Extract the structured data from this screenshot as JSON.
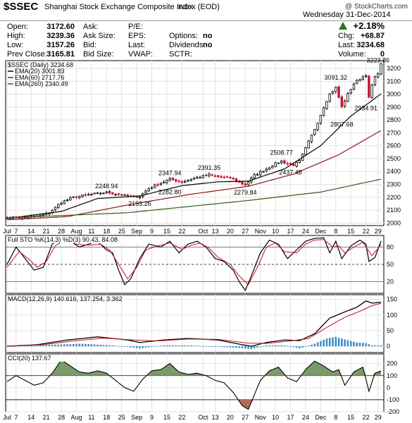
{
  "header": {
    "symbol": "$SSEC",
    "name": "Shanghai Stock Exchange Composite Index (EOD)",
    "exchange": "INDX",
    "watermark": "@ StockCharts.com",
    "date": "Wednesday  31-Dec-2014",
    "change_pct": "+2.18%",
    "up_color": "#1e7a1e",
    "fields": {
      "open_label": "Open:",
      "open": "3172.60",
      "high_label": "High:",
      "high": "3239.36",
      "low_label": "Low:",
      "low": "3157.26",
      "prev_label": "Prev Close:",
      "prev": "3165.81",
      "ask_label": "Ask:",
      "asksize_label": "Ask Size:",
      "bid_label": "Bid:",
      "bidsize_label": "Bid Size:",
      "pe_label": "P/E:",
      "eps_label": "EPS:",
      "last_label": "Last:",
      "vwap_label": "VWAP:",
      "options_label": "Options:",
      "options": "no",
      "dividends_label": "Dividends:",
      "dividends": "no",
      "sctr_label": "SCTR:",
      "chg_label": "Chg:",
      "chg": "+68.87",
      "last2_label": "Last:",
      "last2": "3234.68",
      "volume_label": "Volume:",
      "volume": "0"
    }
  },
  "chart_data": [
    {
      "type": "candlestick",
      "title": "$SSEC (Daily) 3234.68",
      "legend": [
        {
          "name": "EMA(20) 3001.83",
          "color": "#000000"
        },
        {
          "name": "EMA(60) 2717.76",
          "color": "#8b1a1a"
        },
        {
          "name": "EMA(260) 2340.49",
          "color": "#2e5e1e"
        }
      ],
      "ylim": [
        1980,
        3260
      ],
      "yticks": [
        2000,
        2100,
        2200,
        2300,
        2400,
        2500,
        2600,
        2700,
        2800,
        2900,
        3000,
        3100,
        3200
      ],
      "x_labels": [
        {
          "i": 0,
          "label": "Jul"
        },
        {
          "i": 3,
          "label": "7"
        },
        {
          "i": 8,
          "label": "14"
        },
        {
          "i": 13,
          "label": "21"
        },
        {
          "i": 18,
          "label": "28"
        },
        {
          "i": 23,
          "label": "Aug"
        },
        {
          "i": 28,
          "label": "11"
        },
        {
          "i": 33,
          "label": "18"
        },
        {
          "i": 38,
          "label": "25"
        },
        {
          "i": 43,
          "label": "Sep"
        },
        {
          "i": 48,
          "label": "9"
        },
        {
          "i": 53,
          "label": "15"
        },
        {
          "i": 58,
          "label": "22"
        },
        {
          "i": 65,
          "label": "Oct"
        },
        {
          "i": 69,
          "label": "13"
        },
        {
          "i": 74,
          "label": "20"
        },
        {
          "i": 79,
          "label": "27"
        },
        {
          "i": 84,
          "label": "Nov"
        },
        {
          "i": 89,
          "label": "10"
        },
        {
          "i": 94,
          "label": "17"
        },
        {
          "i": 99,
          "label": "24"
        },
        {
          "i": 104,
          "label": "Dec"
        },
        {
          "i": 109,
          "label": "8"
        },
        {
          "i": 114,
          "label": "15"
        },
        {
          "i": 119,
          "label": "22"
        },
        {
          "i": 123,
          "label": "29"
        }
      ],
      "annotations": [
        {
          "i": 33,
          "value": 2248.94,
          "label": "2248.94"
        },
        {
          "i": 44,
          "value": 2193.26,
          "label": "2193.26"
        },
        {
          "i": 54,
          "value": 2347.94,
          "label": "2347.94"
        },
        {
          "i": 54,
          "value": 2282.8,
          "label": "2282.80"
        },
        {
          "i": 67,
          "value": 2391.35,
          "label": "2391.35"
        },
        {
          "i": 79,
          "value": 2279.84,
          "label": "2279.84"
        },
        {
          "i": 91,
          "value": 2508.77,
          "label": "2508.77"
        },
        {
          "i": 94,
          "value": 2437.48,
          "label": "2437.48"
        },
        {
          "i": 109,
          "value": 3091.32,
          "label": "3091.32"
        },
        {
          "i": 111,
          "value": 2807.68,
          "label": "2807.68"
        },
        {
          "i": 119,
          "value": 2934.91,
          "label": "2934.91"
        },
        {
          "i": 123,
          "value": 3223.86,
          "label": "3223.86"
        }
      ],
      "anchors": [
        [
          0,
          2040
        ],
        [
          5,
          2045
        ],
        [
          10,
          2050
        ],
        [
          14,
          2080
        ],
        [
          18,
          2160
        ],
        [
          22,
          2200
        ],
        [
          26,
          2215
        ],
        [
          30,
          2230
        ],
        [
          33,
          2238
        ],
        [
          37,
          2222
        ],
        [
          41,
          2205
        ],
        [
          44,
          2205
        ],
        [
          47,
          2270
        ],
        [
          50,
          2300
        ],
        [
          54,
          2340
        ],
        [
          58,
          2318
        ],
        [
          61,
          2340
        ],
        [
          65,
          2363
        ],
        [
          67,
          2375
        ],
        [
          70,
          2358
        ],
        [
          74,
          2350
        ],
        [
          77,
          2315
        ],
        [
          79,
          2295
        ],
        [
          82,
          2370
        ],
        [
          86,
          2420
        ],
        [
          89,
          2460
        ],
        [
          91,
          2480
        ],
        [
          93,
          2460
        ],
        [
          95,
          2450
        ],
        [
          97,
          2480
        ],
        [
          99,
          2580
        ],
        [
          101,
          2680
        ],
        [
          103,
          2780
        ],
        [
          105,
          2900
        ],
        [
          107,
          3000
        ],
        [
          109,
          3050
        ],
        [
          111,
          2900
        ],
        [
          113,
          3000
        ],
        [
          115,
          3080
        ],
        [
          117,
          3120
        ],
        [
          119,
          3150
        ],
        [
          120,
          2970
        ],
        [
          121,
          3070
        ],
        [
          122,
          3130
        ],
        [
          123,
          3165
        ],
        [
          124,
          3234.68
        ]
      ],
      "ema_anchors": {
        "ema20": [
          [
            0,
            2035
          ],
          [
            18,
            2090
          ],
          [
            30,
            2190
          ],
          [
            44,
            2210
          ],
          [
            58,
            2290
          ],
          [
            70,
            2320
          ],
          [
            80,
            2325
          ],
          [
            92,
            2420
          ],
          [
            104,
            2600
          ],
          [
            114,
            2830
          ],
          [
            124,
            3001.83
          ]
        ],
        "ema60": [
          [
            0,
            2025
          ],
          [
            20,
            2050
          ],
          [
            40,
            2140
          ],
          [
            60,
            2220
          ],
          [
            80,
            2285
          ],
          [
            95,
            2380
          ],
          [
            110,
            2530
          ],
          [
            124,
            2717.76
          ]
        ],
        "ema260": [
          [
            0,
            2040
          ],
          [
            40,
            2080
          ],
          [
            80,
            2175
          ],
          [
            104,
            2240
          ],
          [
            124,
            2340.49
          ]
        ]
      }
    },
    {
      "type": "line",
      "title": "Full STO %K(14,3) %D(3) 90.43, 84.08",
      "ylim": [
        0,
        100
      ],
      "yticks": [
        20,
        50,
        80
      ],
      "k_anchors": [
        [
          0,
          50
        ],
        [
          3,
          80
        ],
        [
          6,
          60
        ],
        [
          9,
          40
        ],
        [
          12,
          45
        ],
        [
          15,
          85
        ],
        [
          18,
          95
        ],
        [
          21,
          90
        ],
        [
          24,
          80
        ],
        [
          27,
          85
        ],
        [
          30,
          90
        ],
        [
          33,
          75
        ],
        [
          35,
          70
        ],
        [
          37,
          40
        ],
        [
          39,
          15
        ],
        [
          41,
          25
        ],
        [
          44,
          60
        ],
        [
          47,
          85
        ],
        [
          51,
          80
        ],
        [
          54,
          90
        ],
        [
          57,
          70
        ],
        [
          60,
          85
        ],
        [
          63,
          90
        ],
        [
          66,
          80
        ],
        [
          69,
          60
        ],
        [
          72,
          55
        ],
        [
          75,
          40
        ],
        [
          77,
          20
        ],
        [
          79,
          5
        ],
        [
          81,
          30
        ],
        [
          84,
          70
        ],
        [
          87,
          92
        ],
        [
          90,
          85
        ],
        [
          93,
          60
        ],
        [
          96,
          75
        ],
        [
          99,
          90
        ],
        [
          102,
          95
        ],
        [
          105,
          96
        ],
        [
          107,
          70
        ],
        [
          109,
          90
        ],
        [
          111,
          60
        ],
        [
          114,
          82
        ],
        [
          117,
          92
        ],
        [
          119,
          85
        ],
        [
          120,
          55
        ],
        [
          122,
          62
        ],
        [
          124,
          90.43
        ]
      ],
      "d_anchors": [
        [
          0,
          45
        ],
        [
          4,
          72
        ],
        [
          7,
          60
        ],
        [
          10,
          45
        ],
        [
          13,
          55
        ],
        [
          16,
          82
        ],
        [
          19,
          92
        ],
        [
          23,
          85
        ],
        [
          27,
          83
        ],
        [
          31,
          85
        ],
        [
          34,
          75
        ],
        [
          37,
          50
        ],
        [
          40,
          25
        ],
        [
          43,
          45
        ],
        [
          46,
          75
        ],
        [
          50,
          82
        ],
        [
          54,
          87
        ],
        [
          58,
          76
        ],
        [
          61,
          83
        ],
        [
          64,
          87
        ],
        [
          67,
          78
        ],
        [
          70,
          62
        ],
        [
          74,
          50
        ],
        [
          77,
          30
        ],
        [
          80,
          15
        ],
        [
          83,
          45
        ],
        [
          86,
          80
        ],
        [
          89,
          87
        ],
        [
          92,
          72
        ],
        [
          96,
          70
        ],
        [
          99,
          85
        ],
        [
          102,
          92
        ],
        [
          105,
          93
        ],
        [
          108,
          80
        ],
        [
          110,
          82
        ],
        [
          112,
          70
        ],
        [
          115,
          80
        ],
        [
          118,
          88
        ],
        [
          121,
          65
        ],
        [
          124,
          84.08
        ]
      ]
    },
    {
      "type": "line",
      "title": "MACD(12,26,9) 140.616, 137.254, 3.362",
      "ylim": [
        -20,
        165
      ],
      "yticks": [
        0,
        50,
        100,
        150
      ],
      "macd_anchors": [
        [
          0,
          0
        ],
        [
          10,
          5
        ],
        [
          20,
          20
        ],
        [
          30,
          30
        ],
        [
          40,
          20
        ],
        [
          44,
          12
        ],
        [
          52,
          20
        ],
        [
          60,
          25
        ],
        [
          70,
          20
        ],
        [
          78,
          5
        ],
        [
          81,
          0
        ],
        [
          86,
          12
        ],
        [
          92,
          20
        ],
        [
          97,
          18
        ],
        [
          102,
          40
        ],
        [
          107,
          90
        ],
        [
          112,
          110
        ],
        [
          116,
          125
        ],
        [
          119,
          145
        ],
        [
          121,
          138
        ],
        [
          124,
          140.616
        ]
      ],
      "signal_anchors": [
        [
          0,
          0
        ],
        [
          12,
          5
        ],
        [
          22,
          17
        ],
        [
          32,
          26
        ],
        [
          42,
          20
        ],
        [
          50,
          17
        ],
        [
          60,
          23
        ],
        [
          70,
          22
        ],
        [
          80,
          10
        ],
        [
          86,
          9
        ],
        [
          94,
          17
        ],
        [
          100,
          25
        ],
        [
          106,
          60
        ],
        [
          112,
          93
        ],
        [
          117,
          112
        ],
        [
          121,
          130
        ],
        [
          124,
          137.254
        ]
      ],
      "hist_anchors": [
        [
          0,
          0
        ],
        [
          15,
          5
        ],
        [
          25,
          8
        ],
        [
          35,
          3
        ],
        [
          44,
          -7
        ],
        [
          52,
          3
        ],
        [
          60,
          3
        ],
        [
          70,
          -2
        ],
        [
          78,
          -6
        ],
        [
          81,
          -9
        ],
        [
          86,
          3
        ],
        [
          92,
          3
        ],
        [
          97,
          -7
        ],
        [
          102,
          8
        ],
        [
          106,
          25
        ],
        [
          109,
          30
        ],
        [
          112,
          22
        ],
        [
          116,
          12
        ],
        [
          119,
          10
        ],
        [
          121,
          3
        ],
        [
          124,
          3.362
        ]
      ]
    },
    {
      "type": "area",
      "title": "CCI(20) 137.67",
      "ylim": [
        -200,
        280
      ],
      "yticks": [
        -200,
        -100,
        0,
        100,
        200
      ],
      "cci_anchors": [
        [
          0,
          50
        ],
        [
          3,
          100
        ],
        [
          6,
          60
        ],
        [
          9,
          20
        ],
        [
          12,
          40
        ],
        [
          15,
          120
        ],
        [
          18,
          230
        ],
        [
          21,
          180
        ],
        [
          24,
          130
        ],
        [
          27,
          120
        ],
        [
          30,
          140
        ],
        [
          33,
          120
        ],
        [
          36,
          60
        ],
        [
          39,
          0
        ],
        [
          42,
          -30
        ],
        [
          45,
          70
        ],
        [
          48,
          140
        ],
        [
          51,
          150
        ],
        [
          54,
          200
        ],
        [
          57,
          130
        ],
        [
          60,
          110
        ],
        [
          63,
          120
        ],
        [
          66,
          100
        ],
        [
          69,
          60
        ],
        [
          72,
          40
        ],
        [
          75,
          -40
        ],
        [
          78,
          -150
        ],
        [
          80,
          -180
        ],
        [
          82,
          -60
        ],
        [
          84,
          60
        ],
        [
          87,
          140
        ],
        [
          90,
          170
        ],
        [
          93,
          80
        ],
        [
          96,
          50
        ],
        [
          99,
          150
        ],
        [
          102,
          220
        ],
        [
          105,
          180
        ],
        [
          108,
          130
        ],
        [
          110,
          150
        ],
        [
          112,
          20
        ],
        [
          115,
          130
        ],
        [
          118,
          170
        ],
        [
          120,
          -30
        ],
        [
          122,
          120
        ],
        [
          124,
          137.67
        ]
      ]
    }
  ]
}
